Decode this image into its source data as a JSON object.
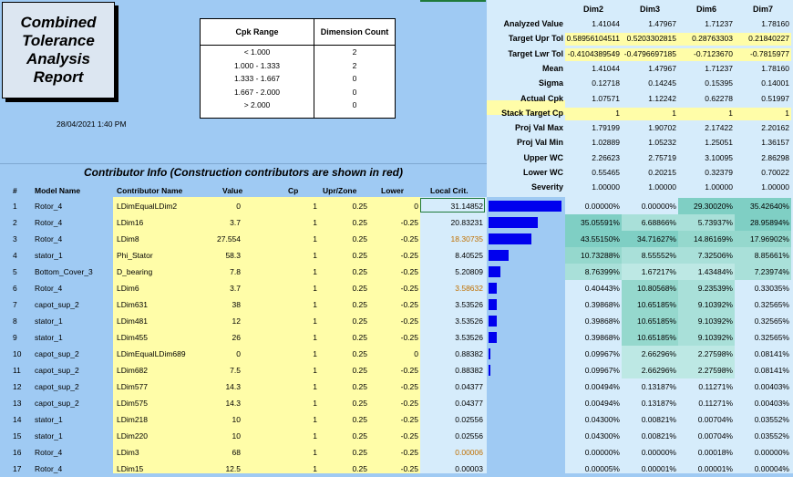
{
  "report_title": "Combined Tolerance Analysis Report",
  "report_date": "28/04/2021 1:40 PM",
  "cpk_table": {
    "headers": [
      "Cpk Range",
      "Dimension Count"
    ],
    "rows": [
      [
        "< 1.000",
        "2"
      ],
      [
        "1.000 - 1.333",
        "2"
      ],
      [
        "1.333 - 1.667",
        "0"
      ],
      [
        "1.667 - 2.000",
        "0"
      ],
      [
        "> 2.000",
        "0"
      ]
    ]
  },
  "dimensions": [
    "Dim2",
    "Dim3",
    "Dim6",
    "Dim7"
  ],
  "stats": [
    {
      "label": "Analyzed Value",
      "values": [
        "1.41044",
        "1.47967",
        "1.71237",
        "1.78160"
      ]
    },
    {
      "label": "Target Upr Tol",
      "values": [
        "0.58956104511",
        "0.5203302815",
        "0.28763303",
        "0.21840227"
      ]
    },
    {
      "label": "Target Lwr Tol",
      "values": [
        "-0.4104389549",
        "-0.4796697185",
        "-0.7123670",
        "-0.7815977"
      ]
    },
    {
      "label": "Mean",
      "values": [
        "1.41044",
        "1.47967",
        "1.71237",
        "1.78160"
      ]
    },
    {
      "label": "Sigma",
      "values": [
        "0.12718",
        "0.14245",
        "0.15395",
        "0.14001"
      ]
    },
    {
      "label": "Actual Cpk",
      "values": [
        "1.07571",
        "1.12242",
        "0.62278",
        "0.51997"
      ]
    },
    {
      "label": "Stack Target Cp",
      "values": [
        "1",
        "1",
        "1",
        "1"
      ]
    },
    {
      "label": "Proj Val Max",
      "values": [
        "1.79199",
        "1.90702",
        "2.17422",
        "2.20162"
      ]
    },
    {
      "label": "Proj Val Min",
      "values": [
        "1.02889",
        "1.05232",
        "1.25051",
        "1.36157"
      ]
    },
    {
      "label": "Upper WC",
      "values": [
        "2.26623",
        "2.75719",
        "3.10095",
        "2.86298"
      ]
    },
    {
      "label": "Lower WC",
      "values": [
        "0.55465",
        "0.20215",
        "0.32379",
        "0.70022"
      ]
    },
    {
      "label": "Severity",
      "values": [
        "1.00000",
        "1.00000",
        "1.00000",
        "1.00000"
      ]
    }
  ],
  "contrib_title": "Contributor Info (Construction contributors are shown in red)",
  "columns": [
    "#",
    "Model Name",
    "Contributor Name",
    "Value",
    "Cp",
    "Upr/Zone",
    "Lower",
    "Local Crit."
  ],
  "colors": {
    "bar": "#0000ee",
    "yellow": "#fffda8",
    "light_blue": "#d6ecfb",
    "orange_text": "#c07000"
  },
  "rows": [
    {
      "num": "1",
      "model": "Rotor_4",
      "contrib": "LDimEqualLDim2",
      "value": "0",
      "cp": "1",
      "upr": "0.25",
      "lower": "0",
      "crit": "31.14852",
      "orange": false,
      "bar": 1.0,
      "pct": [
        "0.00000%",
        "0.00000%",
        "29.30020%",
        "35.42640%"
      ]
    },
    {
      "num": "2",
      "model": "Rotor_4",
      "contrib": "LDim16",
      "value": "3.7",
      "cp": "1",
      "upr": "0.25",
      "lower": "-0.25",
      "crit": "20.83231",
      "orange": false,
      "bar": 0.669,
      "pct": [
        "35.05591%",
        "6.68866%",
        "5.73937%",
        "28.95894%"
      ]
    },
    {
      "num": "3",
      "model": "Rotor_4",
      "contrib": "LDim8",
      "value": "27.554",
      "cp": "1",
      "upr": "0.25",
      "lower": "-0.25",
      "crit": "18.30735",
      "orange": true,
      "bar": 0.588,
      "pct": [
        "43.55150%",
        "34.71627%",
        "14.86169%",
        "17.96902%"
      ]
    },
    {
      "num": "4",
      "model": "stator_1",
      "contrib": "Phi_Stator",
      "value": "58.3",
      "cp": "1",
      "upr": "0.25",
      "lower": "-0.25",
      "crit": "8.40525",
      "orange": false,
      "bar": 0.27,
      "pct": [
        "10.73288%",
        "8.55552%",
        "7.32506%",
        "8.85661%"
      ]
    },
    {
      "num": "5",
      "model": "Bottom_Cover_3",
      "contrib": "D_bearing",
      "value": "7.8",
      "cp": "1",
      "upr": "0.25",
      "lower": "-0.25",
      "crit": "5.20809",
      "orange": false,
      "bar": 0.167,
      "pct": [
        "8.76399%",
        "1.67217%",
        "1.43484%",
        "7.23974%"
      ]
    },
    {
      "num": "6",
      "model": "Rotor_4",
      "contrib": "LDim6",
      "value": "3.7",
      "cp": "1",
      "upr": "0.25",
      "lower": "-0.25",
      "crit": "3.58632",
      "orange": true,
      "bar": 0.115,
      "pct": [
        "0.40443%",
        "10.80568%",
        "9.23539%",
        "0.33035%"
      ]
    },
    {
      "num": "7",
      "model": "capot_sup_2",
      "contrib": "LDim631",
      "value": "38",
      "cp": "1",
      "upr": "0.25",
      "lower": "-0.25",
      "crit": "3.53526",
      "orange": false,
      "bar": 0.113,
      "pct": [
        "0.39868%",
        "10.65185%",
        "9.10392%",
        "0.32565%"
      ]
    },
    {
      "num": "8",
      "model": "stator_1",
      "contrib": "LDim481",
      "value": "12",
      "cp": "1",
      "upr": "0.25",
      "lower": "-0.25",
      "crit": "3.53526",
      "orange": false,
      "bar": 0.113,
      "pct": [
        "0.39868%",
        "10.65185%",
        "9.10392%",
        "0.32565%"
      ]
    },
    {
      "num": "9",
      "model": "stator_1",
      "contrib": "LDim455",
      "value": "26",
      "cp": "1",
      "upr": "0.25",
      "lower": "-0.25",
      "crit": "3.53526",
      "orange": false,
      "bar": 0.113,
      "pct": [
        "0.39868%",
        "10.65185%",
        "9.10392%",
        "0.32565%"
      ]
    },
    {
      "num": "10",
      "model": "capot_sup_2",
      "contrib": "LDimEqualLDim689",
      "value": "0",
      "cp": "1",
      "upr": "0.25",
      "lower": "0",
      "crit": "0.88382",
      "orange": false,
      "bar": 0.028,
      "pct": [
        "0.09967%",
        "2.66296%",
        "2.27598%",
        "0.08141%"
      ]
    },
    {
      "num": "11",
      "model": "capot_sup_2",
      "contrib": "LDim682",
      "value": "7.5",
      "cp": "1",
      "upr": "0.25",
      "lower": "-0.25",
      "crit": "0.88382",
      "orange": false,
      "bar": 0.028,
      "pct": [
        "0.09967%",
        "2.66296%",
        "2.27598%",
        "0.08141%"
      ]
    },
    {
      "num": "12",
      "model": "capot_sup_2",
      "contrib": "LDim577",
      "value": "14.3",
      "cp": "1",
      "upr": "0.25",
      "lower": "-0.25",
      "crit": "0.04377",
      "orange": false,
      "bar": 0.0,
      "pct": [
        "0.00494%",
        "0.13187%",
        "0.11271%",
        "0.00403%"
      ]
    },
    {
      "num": "13",
      "model": "capot_sup_2",
      "contrib": "LDim575",
      "value": "14.3",
      "cp": "1",
      "upr": "0.25",
      "lower": "-0.25",
      "crit": "0.04377",
      "orange": false,
      "bar": 0.0,
      "pct": [
        "0.00494%",
        "0.13187%",
        "0.11271%",
        "0.00403%"
      ]
    },
    {
      "num": "14",
      "model": "stator_1",
      "contrib": "LDim218",
      "value": "10",
      "cp": "1",
      "upr": "0.25",
      "lower": "-0.25",
      "crit": "0.02556",
      "orange": false,
      "bar": 0.0,
      "pct": [
        "0.04300%",
        "0.00821%",
        "0.00704%",
        "0.03552%"
      ]
    },
    {
      "num": "15",
      "model": "stator_1",
      "contrib": "LDim220",
      "value": "10",
      "cp": "1",
      "upr": "0.25",
      "lower": "-0.25",
      "crit": "0.02556",
      "orange": false,
      "bar": 0.0,
      "pct": [
        "0.04300%",
        "0.00821%",
        "0.00704%",
        "0.03552%"
      ]
    },
    {
      "num": "16",
      "model": "Rotor_4",
      "contrib": "LDim3",
      "value": "68",
      "cp": "1",
      "upr": "0.25",
      "lower": "-0.25",
      "crit": "0.00006",
      "orange": true,
      "bar": 0.0,
      "pct": [
        "0.00000%",
        "0.00000%",
        "0.00018%",
        "0.00000%"
      ]
    },
    {
      "num": "17",
      "model": "Rotor_4",
      "contrib": "LDim15",
      "value": "12.5",
      "cp": "1",
      "upr": "0.25",
      "lower": "-0.25",
      "crit": "0.00003",
      "orange": false,
      "bar": 0.0,
      "pct": [
        "0.00005%",
        "0.00001%",
        "0.00001%",
        "0.00004%"
      ]
    }
  ]
}
